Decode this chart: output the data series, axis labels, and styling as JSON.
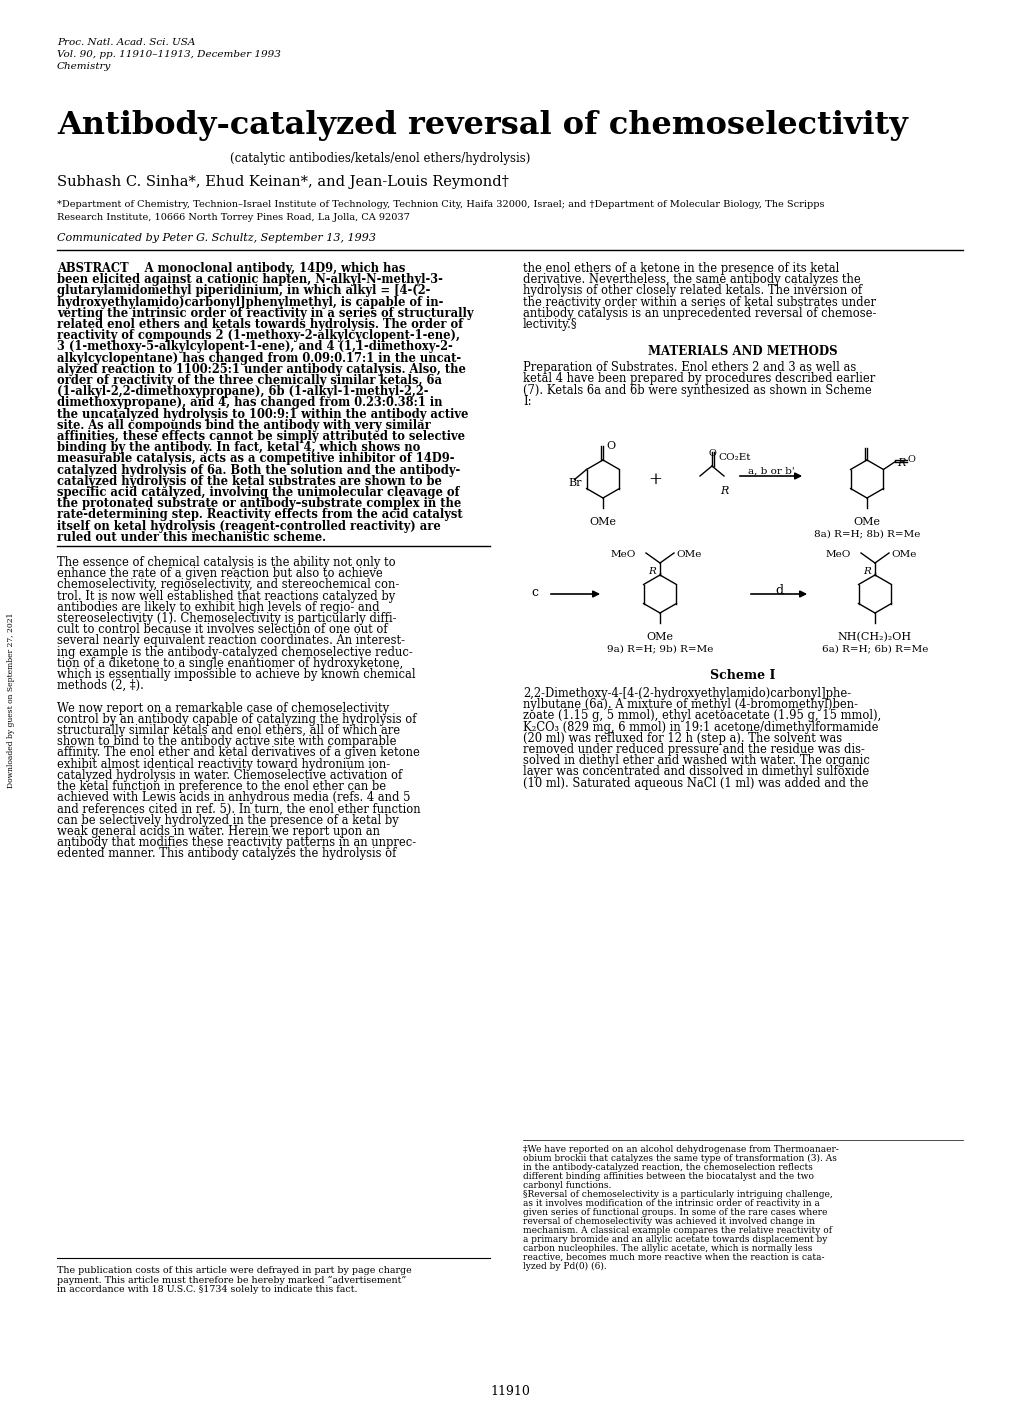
{
  "background_color": "#ffffff",
  "journal_line1": "Proc. Natl. Acad. Sci. USA",
  "journal_line2": "Vol. 90, pp. 11910–11913, December 1993",
  "journal_line3": "Chemistry",
  "title": "Antibody-catalyzed reversal of chemoselectivity",
  "subtitle": "(catalytic antibodies/ketals/enol ethers/hydrolysis)",
  "authors_small_caps": "Subhash C. Sinha*, Ehud Keinan*, and Jean-Louis Reymond†",
  "affiliation1": "*Department of Chemistry, Technion–Israel Institute of Technology, Technion City, Haifa 32000, Israel; and †Department of Molecular Biology, The Scripps",
  "affiliation2": "Research Institute, 10666 North Torrey Pines Road, La Jolla, CA 92037",
  "communicated": "Communicated by Peter G. Schultz, September 13, 1993",
  "abstract_col1_lines": [
    "ABSTRACT    A monoclonal antibody, 14D9, which has",
    "been elicited against a cationic hapten, N-alkyl-N-methyl-3-",
    "glutarylamidomethyl piperidinium, in which alkyl = [4-(2-",
    "hydroxyethylamido)carbonyl]phenylmethyl, is capable of in-",
    "verting the intrinsic order of reactivity in a series of structurally",
    "related enol ethers and ketals towards hydrolysis. The order of",
    "reactivity of compounds 2 (1-methoxy-2-alkylcyclopent-1-ene),",
    "3 (1-methoxy-5-alkylcylopent-1-ene), and 4 (1,1-dimethoxy-2-",
    "alkylcyclopentane) has changed from 0.09:0.17:1 in the uncat-",
    "alyzed reaction to 1100:25:1 under antibody catalysis. Also, the",
    "order of reactivity of the three chemically similar ketals, 6a",
    "(1-alkyl-2,2-dimethoxypropane), 6b (1-alkyl-1-methyl-2,2-",
    "dimethoxypropane), and 4, has changed from 0.23:0.38:1 in",
    "the uncatalyzed hydrolysis to 100:9:1 within the antibody active",
    "site. As all compounds bind the antibody with very similar",
    "affinities, these effects cannot be simply attributed to selective",
    "binding by the antibody. In fact, ketal 4, which shows no",
    "measurable catalysis, acts as a competitive inhibitor of 14D9-",
    "catalyzed hydrolysis of 6a. Both the solution and the antibody-",
    "catalyzed hydrolysis of the ketal substrates are shown to be",
    "specific acid catalyzed, involving the unimolecular cleavage of",
    "the protonated substrate or antibody–substrate complex in the",
    "rate-determining step. Reactivity effects from the acid catalyst",
    "itself on ketal hydrolysis (reagent-controlled reactivity) are",
    "ruled out under this mechanistic scheme."
  ],
  "abstract_col2_lines": [
    "the enol ethers of a ketone in the presence of its ketal",
    "derivative. Nevertheless, the same antibody catalyzes the",
    "hydrolysis of other closely related ketals. The inversion of",
    "the reactivity order within a series of ketal substrates under",
    "antibody catalysis is an unprecedented reversal of chemose-",
    "lectivity.§"
  ],
  "materials_title": "MATERIALS AND METHODS",
  "mat_lines": [
    "Preparation of Substrates. Enol ethers 2 and 3 as well as",
    "ketal 4 have been prepared by procedures described earlier",
    "(7). Ketals 6a and 6b were synthesized as shown in Scheme",
    "I:"
  ],
  "body_col1_lines": [
    "The essence of chemical catalysis is the ability not only to",
    "enhance the rate of a given reaction but also to achieve",
    "chemoselectivity, regioselectivity, and stereochemical con-",
    "trol. It is now well established that reactions catalyzed by",
    "antibodies are likely to exhibit high levels of regio- and",
    "stereoselectivity (1). Chemoselectivity is particularly diffi-",
    "cult to control because it involves selection of one out of",
    "several nearly equivalent reaction coordinates. An interest-",
    "ing example is the antibody-catalyzed chemoselective reduc-",
    "tion of a diketone to a single enantiomer of hydroxyketone,",
    "which is essentially impossible to achieve by known chemical",
    "methods (2, ‡).",
    "",
    "We now report on a remarkable case of chemoselectivity",
    "control by an antibody capable of catalyzing the hydrolysis of",
    "structurally similar ketals and enol ethers, all of which are",
    "shown to bind to the antibody active site with comparable",
    "affinity. The enol ether and ketal derivatives of a given ketone",
    "exhibit almost identical reactivity toward hydronium ion-",
    "catalyzed hydrolysis in water. Chemoselective activation of",
    "the ketal function in preference to the enol ether can be",
    "achieved with Lewis acids in anhydrous media (refs. 4 and 5",
    "and references cited in ref. 5). In turn, the enol ether function",
    "can be selectively hydrolyzed in the presence of a ketal by",
    "weak general acids in water. Herein we report upon an",
    "antibody that modifies these reactivity patterns in an unprec-",
    "edented manner. This antibody catalyzes the hydrolysis of"
  ],
  "rcol_lines": [
    "2,2-Dimethoxy-4-[4-(2-hydroxyethylamido)carbonyl]phe-",
    "nylbutane (6a). A mixture of methyl (4-bromomethyl)ben-",
    "zoate (1.15 g, 5 mmol), ethyl acetoacetate (1.95 g, 15 mmol),",
    "K₂CO₃ (829 mg, 6 mmol) in 19:1 acetone/dimethylformamide",
    "(20 ml) was refluxed for 12 h (step a). The solvent was",
    "removed under reduced pressure and the residue was dis-",
    "solved in diethyl ether and washed with water. The organic",
    "layer was concentrated and dissolved in dimethyl sulfoxide",
    "(10 ml). Saturated aqueous NaCl (1 ml) was added and the"
  ],
  "footnote_right_lines": [
    "‡We have reported on an alcohol dehydrogenase from Thermoanaer-",
    "obium brockii that catalyzes the same type of transformation (3). As",
    "in the antibody-catalyzed reaction, the chemoselection reflects",
    "different binding affinities between the biocatalyst and the two",
    "carbonyl functions.",
    "§Reversal of chemoselectivity is a particularly intriguing challenge,",
    "as it involves modification of the intrinsic order of reactivity in a",
    "given series of functional groups. In some of the rare cases where",
    "reversal of chemoselectivity was achieved it involved change in",
    "mechanism. A classical example compares the relative reactivity of",
    "a primary bromide and an allylic acetate towards displacement by",
    "carbon nucleophiles. The allylic acetate, which is normally less",
    "reactive, becomes much more reactive when the reaction is cata-",
    "lyzed by Pd(0) (6)."
  ],
  "footnote_left_lines": [
    "The publication costs of this article were defrayed in part by page charge",
    "payment. This article must therefore be hereby marked “advertisement”",
    "in accordance with 18 U.S.C. §1734 solely to indicate this fact."
  ],
  "page_number": "11910",
  "scheme_label": "Scheme I",
  "watermark": "Downloaded by guest on September 27, 2021"
}
